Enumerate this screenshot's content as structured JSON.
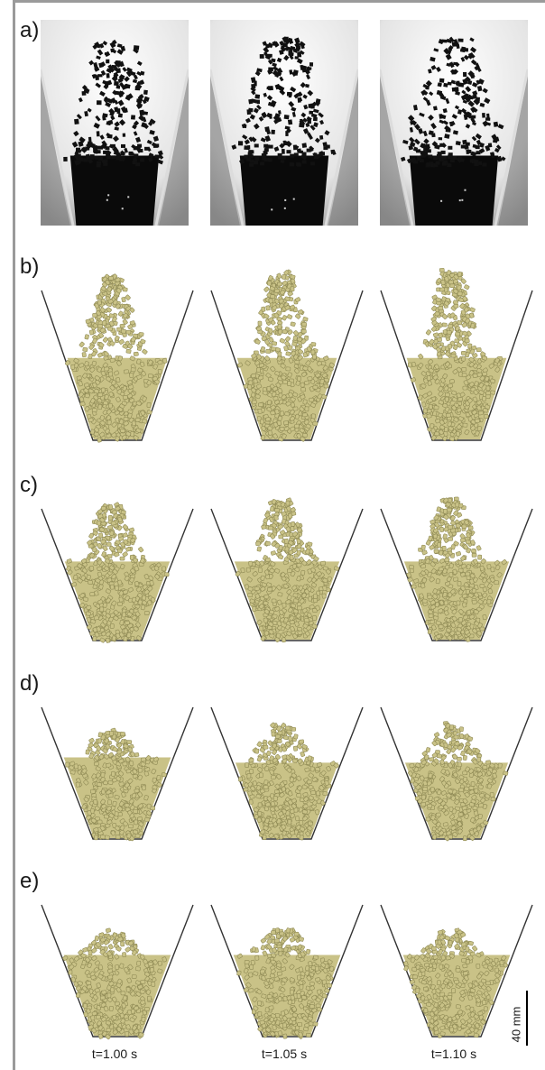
{
  "row_labels": [
    "a)",
    "b)",
    "c)",
    "d)",
    "e)"
  ],
  "time_labels": [
    "t=1.00 s",
    "t=1.05 s",
    "t=1.10 s"
  ],
  "scale_label": "40 mm",
  "colors": {
    "frame": "#9a9a9a",
    "particle_fill": "#c9c287",
    "particle_edge": "#8f8a55",
    "photo_particle": "#111111",
    "hopper_line": "#333333"
  }
}
